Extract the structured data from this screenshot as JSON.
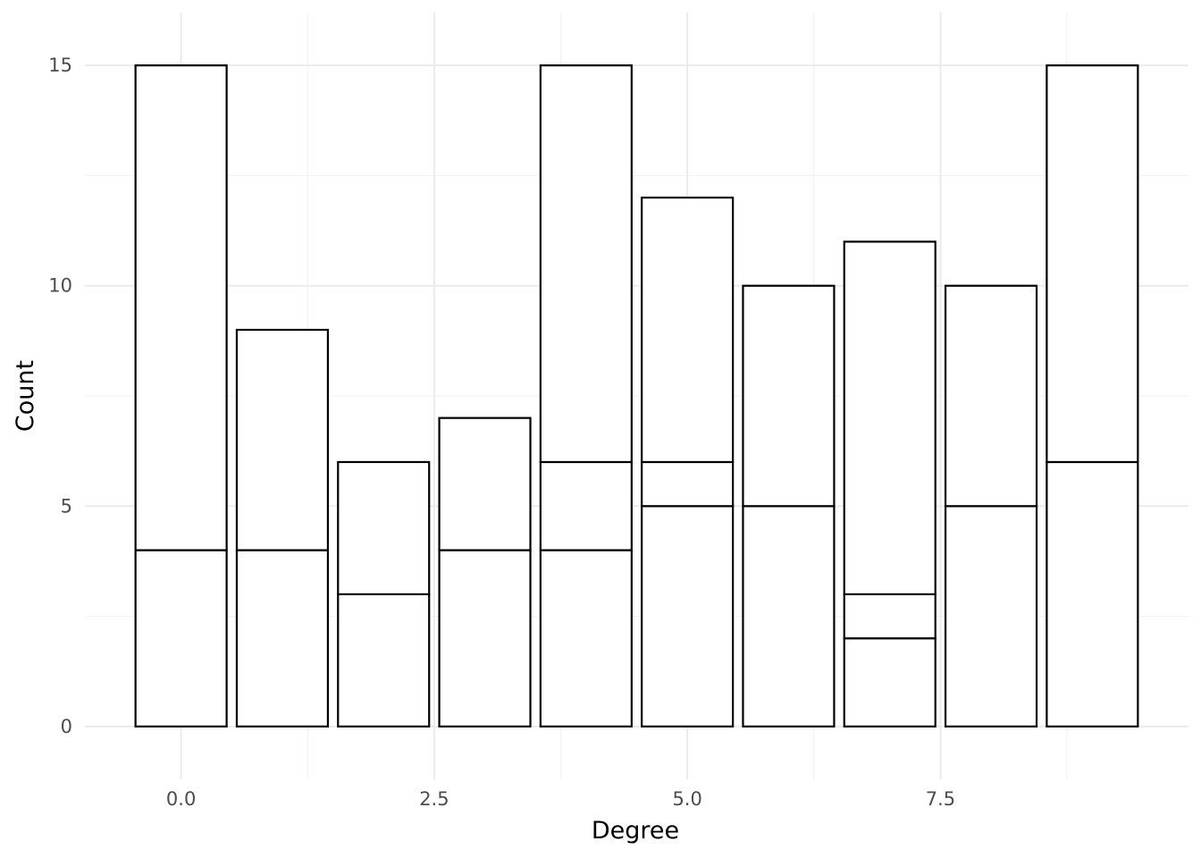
{
  "chart_data": {
    "type": "bar",
    "stacked": true,
    "xlabel": "Degree",
    "ylabel": "Count",
    "x": [
      0,
      1,
      2,
      3,
      4,
      5,
      6,
      7,
      8,
      9
    ],
    "segments": [
      [
        4,
        11
      ],
      [
        4,
        5
      ],
      [
        3,
        3
      ],
      [
        4,
        3
      ],
      [
        4,
        2,
        9
      ],
      [
        5,
        1,
        6
      ],
      [
        5,
        5
      ],
      [
        2,
        1,
        8
      ],
      [
        5,
        5
      ],
      [
        6,
        9
      ]
    ],
    "totals": [
      15,
      9,
      6,
      7,
      15,
      12,
      10,
      11,
      10,
      15
    ],
    "xlim": [
      -0.95,
      9.95
    ],
    "ylim": [
      -1.2,
      16.2
    ],
    "x_ticks": [
      0,
      2.5,
      5,
      7.5
    ],
    "x_tick_labels": [
      "0.0",
      "2.5",
      "5.0",
      "7.5"
    ],
    "y_ticks": [
      0,
      5,
      10,
      15
    ],
    "y_tick_labels": [
      "0",
      "5",
      "10",
      "15"
    ],
    "grid": true,
    "legend": "none",
    "colors": {
      "bar_fill": "#ffffff",
      "bar_stroke": "#000000",
      "grid": "#ebebeb"
    }
  }
}
